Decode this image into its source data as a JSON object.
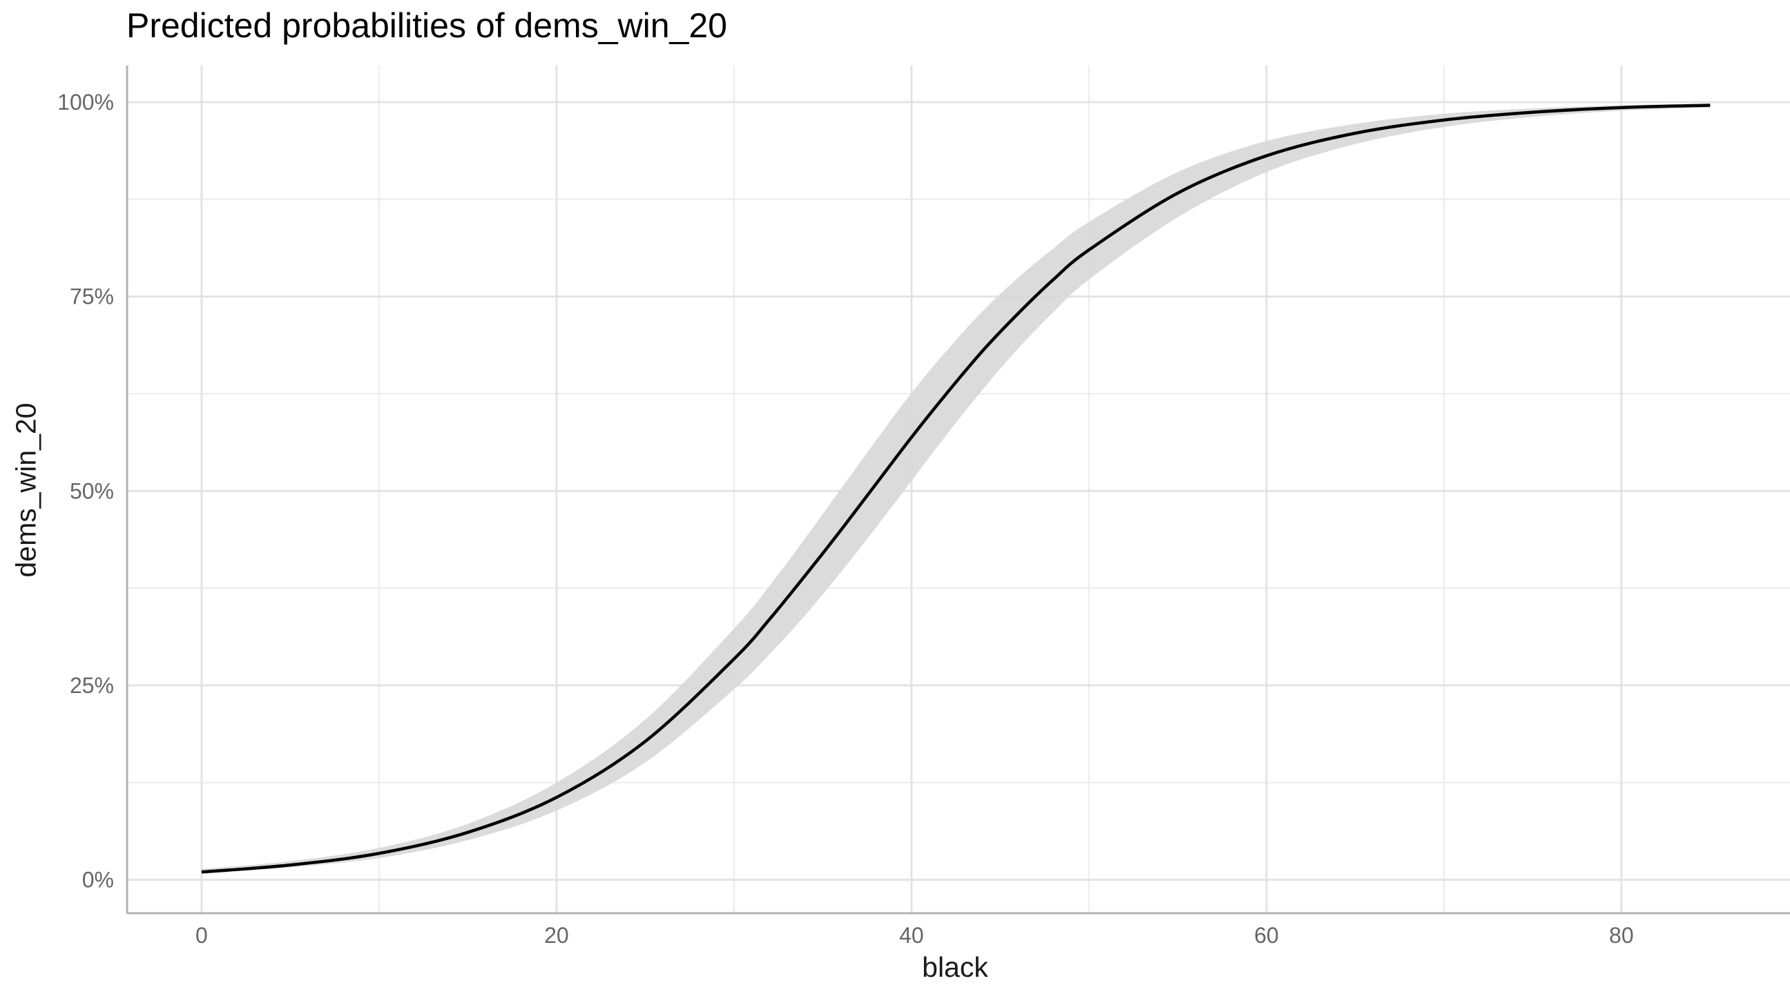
{
  "chart_data": {
    "type": "line",
    "title": "Predicted probabilities of dems_win_20",
    "xlabel": "black",
    "ylabel": "dems_win_20",
    "xlim": [
      -4.2,
      89.5
    ],
    "ylim": [
      -0.043,
      1.047
    ],
    "x_ticks": [
      0,
      20,
      40,
      60,
      80
    ],
    "x_tick_labels": [
      "0",
      "20",
      "40",
      "60",
      "80"
    ],
    "y_ticks": [
      0,
      0.25,
      0.5,
      0.75,
      1.0
    ],
    "y_tick_labels": [
      "0%",
      "25%",
      "50%",
      "75%",
      "100%"
    ],
    "grid": true,
    "legend": "none",
    "series": [
      {
        "color": "#000000",
        "band_color": "#d9d9d9",
        "x": [
          0,
          5,
          10,
          15,
          20,
          25,
          30,
          32,
          34,
          36,
          38,
          40,
          42,
          44,
          46,
          48,
          50,
          55,
          60,
          65,
          70,
          75,
          80,
          85
        ],
        "y": [
          0.01,
          0.019,
          0.034,
          0.061,
          0.106,
          0.178,
          0.284,
          0.335,
          0.391,
          0.449,
          0.509,
          0.569,
          0.626,
          0.68,
          0.728,
          0.772,
          0.81,
          0.883,
          0.931,
          0.96,
          0.977,
          0.987,
          0.993,
          0.996
        ],
        "lower": [
          0.008,
          0.016,
          0.028,
          0.051,
          0.089,
          0.151,
          0.245,
          0.29,
          0.34,
          0.395,
          0.453,
          0.513,
          0.573,
          0.63,
          0.683,
          0.73,
          0.772,
          0.852,
          0.91,
          0.946,
          0.968,
          0.981,
          0.989,
          0.993
        ],
        "upper": [
          0.014,
          0.024,
          0.041,
          0.072,
          0.125,
          0.206,
          0.323,
          0.378,
          0.439,
          0.502,
          0.565,
          0.626,
          0.681,
          0.731,
          0.774,
          0.812,
          0.846,
          0.91,
          0.95,
          0.972,
          0.985,
          0.992,
          0.996,
          0.998
        ]
      }
    ]
  }
}
